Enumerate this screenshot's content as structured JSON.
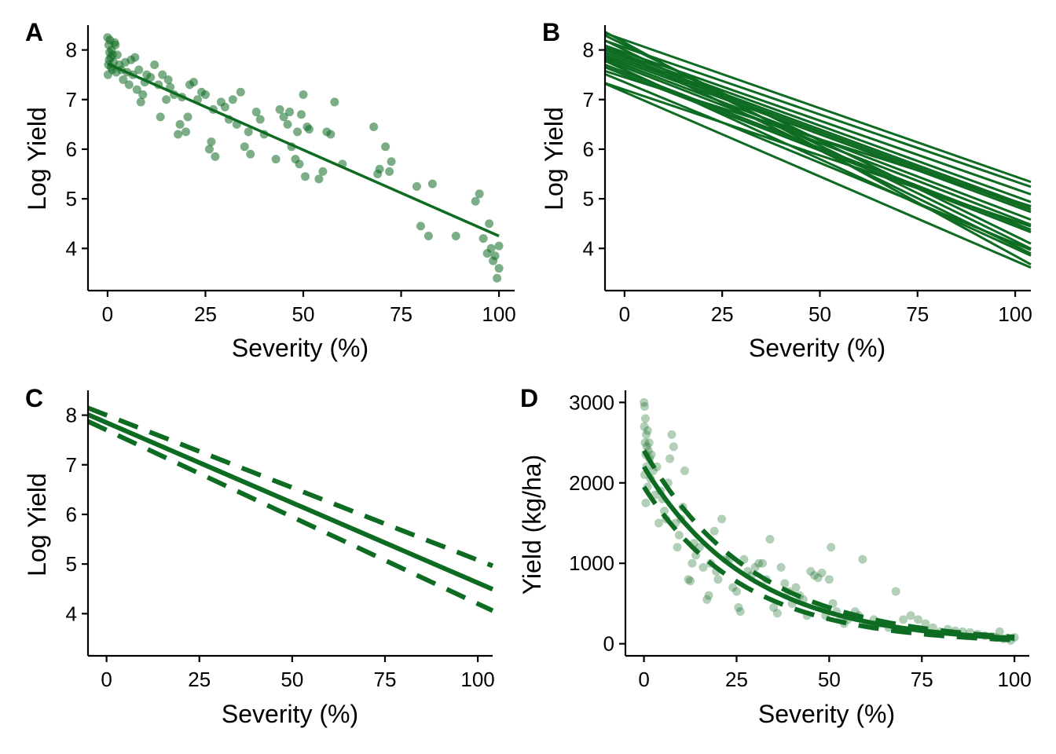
{
  "figure": {
    "color": "#0e6b22"
  },
  "chart_data": [
    {
      "id": "A",
      "panel_label": "A",
      "type": "scatter",
      "xlabel": "Severity (%)",
      "ylabel": "Log Yield",
      "xlim": [
        -5,
        104
      ],
      "ylim": [
        3.15,
        8.5
      ],
      "x_ticks": [
        0,
        25,
        50,
        75,
        100
      ],
      "y_ticks": [
        4,
        5,
        6,
        7,
        8
      ],
      "points": [
        [
          0,
          8.25
        ],
        [
          0.3,
          8.1
        ],
        [
          0.5,
          7.95
        ],
        [
          0.8,
          7.85
        ],
        [
          0.2,
          7.7
        ],
        [
          1,
          8.0
        ],
        [
          1.2,
          7.6
        ],
        [
          0.1,
          7.5
        ],
        [
          0.6,
          8.2
        ],
        [
          1.5,
          7.75
        ],
        [
          2,
          8.1
        ],
        [
          2.5,
          7.9
        ],
        [
          3,
          7.7
        ],
        [
          0.4,
          7.8
        ],
        [
          1.8,
          8.15
        ],
        [
          2.2,
          7.55
        ],
        [
          0.9,
          7.65
        ],
        [
          1.3,
          7.9
        ],
        [
          3.5,
          7.6
        ],
        [
          4,
          7.4
        ],
        [
          4.5,
          7.75
        ],
        [
          5,
          7.55
        ],
        [
          5.5,
          7.3
        ],
        [
          6,
          7.8
        ],
        [
          6.5,
          7.5
        ],
        [
          7,
          7.85
        ],
        [
          7.5,
          7.2
        ],
        [
          8,
          7.6
        ],
        [
          8.5,
          6.95
        ],
        [
          9,
          7.1
        ],
        [
          9.5,
          7.35
        ],
        [
          10,
          7.5
        ],
        [
          11,
          7.45
        ],
        [
          12,
          7.7
        ],
        [
          13,
          7.3
        ],
        [
          13.5,
          6.65
        ],
        [
          14,
          7.5
        ],
        [
          15,
          7.0
        ],
        [
          15.5,
          7.4
        ],
        [
          16,
          7.25
        ],
        [
          17,
          7.1
        ],
        [
          18,
          6.3
        ],
        [
          18.5,
          6.5
        ],
        [
          19,
          7.05
        ],
        [
          20,
          6.35
        ],
        [
          20.5,
          6.65
        ],
        [
          21,
          7.3
        ],
        [
          22,
          7.35
        ],
        [
          23,
          7.0
        ],
        [
          24,
          7.15
        ],
        [
          25,
          7.1
        ],
        [
          26,
          6.0
        ],
        [
          26.5,
          6.15
        ],
        [
          27,
          6.8
        ],
        [
          27.5,
          5.85
        ],
        [
          29,
          6.95
        ],
        [
          30,
          6.85
        ],
        [
          31,
          6.6
        ],
        [
          32,
          7.0
        ],
        [
          33,
          6.5
        ],
        [
          34,
          7.15
        ],
        [
          35,
          6.05
        ],
        [
          36,
          6.35
        ],
        [
          36.5,
          5.9
        ],
        [
          38,
          6.75
        ],
        [
          39,
          6.6
        ],
        [
          40,
          6.3
        ],
        [
          43,
          5.8
        ],
        [
          44,
          6.8
        ],
        [
          45,
          6.65
        ],
        [
          46,
          6.5
        ],
        [
          46.5,
          6.75
        ],
        [
          47,
          6.05
        ],
        [
          48,
          5.8
        ],
        [
          48.5,
          6.35
        ],
        [
          49,
          5.7
        ],
        [
          49.5,
          6.7
        ],
        [
          50,
          7.1
        ],
        [
          50.5,
          5.45
        ],
        [
          51,
          6.45
        ],
        [
          51.5,
          6.4
        ],
        [
          54,
          5.4
        ],
        [
          55,
          5.55
        ],
        [
          56,
          6.35
        ],
        [
          57,
          6.3
        ],
        [
          58,
          6.95
        ],
        [
          60,
          5.7
        ],
        [
          68,
          6.45
        ],
        [
          69,
          5.5
        ],
        [
          69.5,
          5.6
        ],
        [
          71,
          6.05
        ],
        [
          72,
          5.55
        ],
        [
          72.5,
          5.75
        ],
        [
          79,
          5.25
        ],
        [
          80,
          4.45
        ],
        [
          82,
          4.25
        ],
        [
          83,
          5.3
        ],
        [
          89,
          4.25
        ],
        [
          94,
          4.95
        ],
        [
          95,
          5.1
        ],
        [
          96,
          4.2
        ],
        [
          97,
          3.9
        ],
        [
          97.5,
          4.5
        ],
        [
          98,
          4.0
        ],
        [
          98.5,
          3.75
        ],
        [
          99,
          3.85
        ],
        [
          99.5,
          3.4
        ],
        [
          100,
          3.6
        ],
        [
          100,
          4.05
        ]
      ],
      "fit_line": {
        "x": [
          0,
          100
        ],
        "y": [
          7.72,
          4.25
        ]
      }
    },
    {
      "id": "B",
      "panel_label": "B",
      "type": "line",
      "xlabel": "Severity (%)",
      "ylabel": "Log Yield",
      "xlim": [
        -5,
        104
      ],
      "ylim": [
        3.15,
        8.5
      ],
      "x_ticks": [
        0,
        25,
        50,
        75,
        100
      ],
      "y_ticks": [
        4,
        5,
        6,
        7,
        8
      ],
      "lines": [
        [
          8.2,
          5.45
        ],
        [
          8.05,
          5.35
        ],
        [
          7.95,
          5.2
        ],
        [
          7.9,
          5.05
        ],
        [
          7.85,
          4.95
        ],
        [
          7.8,
          4.9
        ],
        [
          7.75,
          4.85
        ],
        [
          7.7,
          4.7
        ],
        [
          7.65,
          4.6
        ],
        [
          7.55,
          4.5
        ],
        [
          7.5,
          4.45
        ],
        [
          7.45,
          4.95
        ],
        [
          8.1,
          4.25
        ],
        [
          8.0,
          4.15
        ],
        [
          7.9,
          4.05
        ],
        [
          7.6,
          4.0
        ],
        [
          7.35,
          4.1
        ],
        [
          7.2,
          4.55
        ],
        [
          7.15,
          3.75
        ],
        [
          8.15,
          3.85
        ]
      ]
    },
    {
      "id": "C",
      "panel_label": "C",
      "type": "line",
      "xlabel": "Severity (%)",
      "ylabel": "Log Yield",
      "xlim": [
        -5,
        104
      ],
      "ylim": [
        3.15,
        8.5
      ],
      "x_ticks": [
        0,
        25,
        50,
        75,
        100
      ],
      "y_ticks": [
        4,
        5,
        6,
        7,
        8
      ],
      "fit": {
        "intercept": 7.85,
        "end": 4.62
      },
      "ci_upper": {
        "intercept": 8.0,
        "end": 5.08
      },
      "ci_lower": {
        "intercept": 7.7,
        "end": 4.2
      }
    },
    {
      "id": "D",
      "panel_label": "D",
      "type": "scatter",
      "xlabel": "Severity (%)",
      "ylabel": "Yield (kg/ha)",
      "xlim": [
        -5,
        104
      ],
      "ylim": [
        -150,
        3150
      ],
      "x_ticks": [
        0,
        25,
        50,
        75,
        100
      ],
      "y_ticks": [
        0,
        1000,
        2000,
        3000
      ],
      "points": [
        [
          0,
          3000
        ],
        [
          0.2,
          2950
        ],
        [
          0.4,
          2800
        ],
        [
          0.1,
          2700
        ],
        [
          0.6,
          2600
        ],
        [
          0.3,
          2500
        ],
        [
          0.8,
          2450
        ],
        [
          1,
          2650
        ],
        [
          0.5,
          2350
        ],
        [
          1.2,
          2400
        ],
        [
          0.7,
          2200
        ],
        [
          1.5,
          2300
        ],
        [
          0.2,
          2100
        ],
        [
          1,
          1950
        ],
        [
          1.4,
          2500
        ],
        [
          2,
          2350
        ],
        [
          2.5,
          2150
        ],
        [
          0.5,
          1750
        ],
        [
          1.8,
          2050
        ],
        [
          3,
          1850
        ],
        [
          3.5,
          2200
        ],
        [
          4,
          1500
        ],
        [
          4.5,
          1900
        ],
        [
          5,
          1800
        ],
        [
          5.5,
          1650
        ],
        [
          6,
          1550
        ],
        [
          6.5,
          2000
        ],
        [
          7,
          2300
        ],
        [
          7.5,
          2600
        ],
        [
          8,
          2450
        ],
        [
          8.5,
          1500
        ],
        [
          9,
          1200
        ],
        [
          9.5,
          1350
        ],
        [
          10,
          1550
        ],
        [
          10.5,
          1700
        ],
        [
          11,
          2150
        ],
        [
          12,
          800
        ],
        [
          12.5,
          780
        ],
        [
          13,
          1000
        ],
        [
          13.5,
          1250
        ],
        [
          14,
          1100
        ],
        [
          15,
          1200
        ],
        [
          16,
          950
        ],
        [
          17,
          550
        ],
        [
          17.5,
          600
        ],
        [
          18,
          1000
        ],
        [
          19,
          1400
        ],
        [
          19.5,
          900
        ],
        [
          20,
          800
        ],
        [
          21,
          1550
        ],
        [
          22,
          1050
        ],
        [
          23,
          1050
        ],
        [
          24,
          700
        ],
        [
          25,
          650
        ],
        [
          25.5,
          450
        ],
        [
          26,
          400
        ],
        [
          27,
          1050
        ],
        [
          28,
          900
        ],
        [
          29,
          850
        ],
        [
          30,
          950
        ],
        [
          31,
          1000
        ],
        [
          32,
          1000
        ],
        [
          33,
          800
        ],
        [
          34,
          1300
        ],
        [
          35,
          450
        ],
        [
          36,
          380
        ],
        [
          37,
          950
        ],
        [
          38,
          750
        ],
        [
          39,
          650
        ],
        [
          40,
          500
        ],
        [
          41,
          700
        ],
        [
          42,
          600
        ],
        [
          43,
          550
        ],
        [
          44,
          350
        ],
        [
          45,
          900
        ],
        [
          46,
          850
        ],
        [
          47,
          820
        ],
        [
          48,
          880
        ],
        [
          49,
          350
        ],
        [
          50,
          800
        ],
        [
          50.5,
          1200
        ],
        [
          51,
          500
        ],
        [
          52,
          400
        ],
        [
          53,
          300
        ],
        [
          54,
          250
        ],
        [
          55,
          300
        ],
        [
          56,
          350
        ],
        [
          57,
          400
        ],
        [
          58,
          350
        ],
        [
          59,
          1050
        ],
        [
          60,
          250
        ],
        [
          62,
          300
        ],
        [
          64,
          250
        ],
        [
          66,
          200
        ],
        [
          68,
          650
        ],
        [
          70,
          300
        ],
        [
          72,
          350
        ],
        [
          74,
          300
        ],
        [
          76,
          250
        ],
        [
          78,
          200
        ],
        [
          80,
          150
        ],
        [
          82,
          180
        ],
        [
          84,
          160
        ],
        [
          86,
          150
        ],
        [
          88,
          140
        ],
        [
          90,
          120
        ],
        [
          92,
          100
        ],
        [
          94,
          90
        ],
        [
          95,
          80
        ],
        [
          96,
          150
        ],
        [
          97,
          60
        ],
        [
          98,
          70
        ],
        [
          99,
          40
        ],
        [
          100,
          80
        ]
      ],
      "fit": {
        "a": 2200,
        "k": 0.0347
      },
      "ci_upper": {
        "a": 2400,
        "k": 0.0335
      },
      "ci_lower": {
        "a": 1950,
        "k": 0.037
      }
    }
  ]
}
